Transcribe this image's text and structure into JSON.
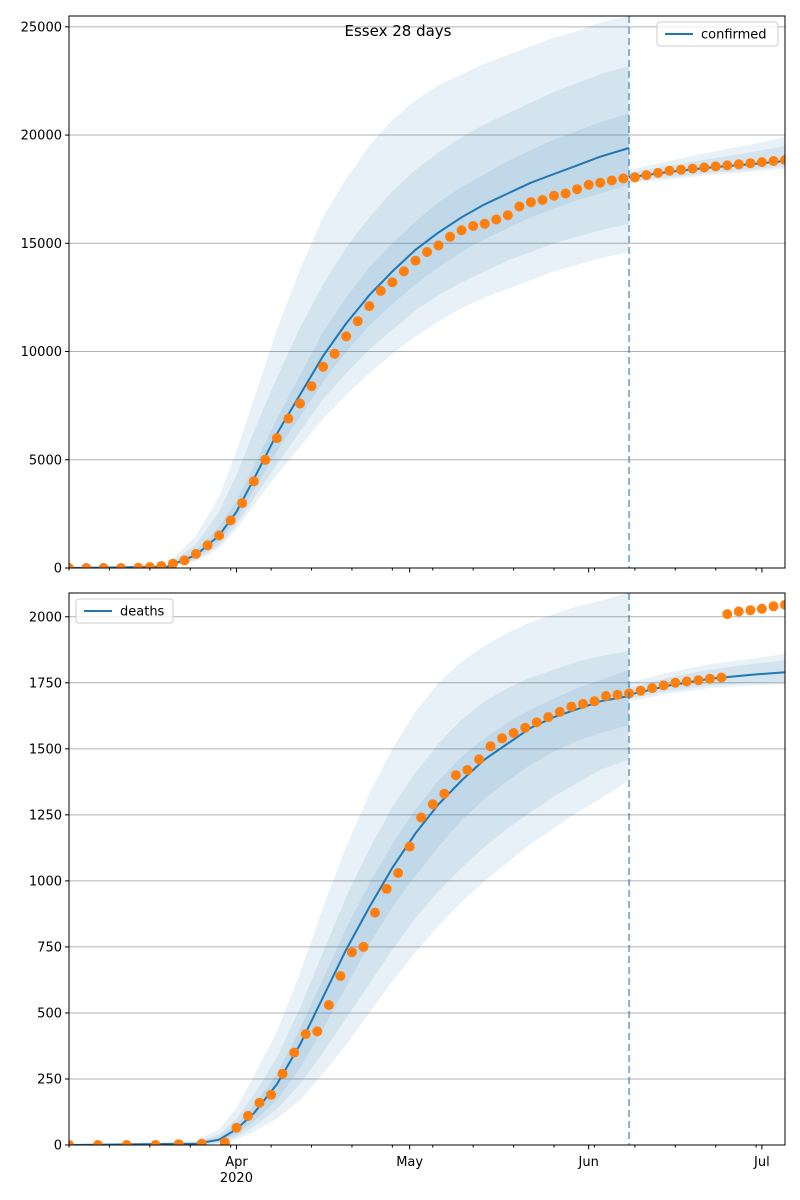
{
  "title": "Essex 28 days",
  "colors": {
    "model": "#1f77b4",
    "observed": "#ff7f0e",
    "grid": "#b0b0b0",
    "band": "#1f77b4"
  },
  "x_axis": {
    "start_date": "2020-03-03",
    "end_date": "2020-07-05",
    "forecast_date": "2020-06-08",
    "tick_labels": [
      "Apr",
      "May",
      "Jun",
      "Jul"
    ],
    "tick_dates": [
      "2020-04-01",
      "2020-05-01",
      "2020-06-01",
      "2020-07-01"
    ],
    "year_label": "2020"
  },
  "chart_data": [
    {
      "type": "line",
      "series_name": "confirmed",
      "legend": "top-right",
      "ylim": [
        0,
        25500
      ],
      "y_ticks": [
        0,
        5000,
        10000,
        15000,
        20000,
        25000
      ],
      "grid": true,
      "model_median": [
        {
          "x": "2020-03-03",
          "y": 0
        },
        {
          "x": "2020-03-20",
          "y": 60
        },
        {
          "x": "2020-03-25",
          "y": 600
        },
        {
          "x": "2020-03-29",
          "y": 1500
        },
        {
          "x": "2020-04-01",
          "y": 2600
        },
        {
          "x": "2020-04-04",
          "y": 4100
        },
        {
          "x": "2020-04-08",
          "y": 6200
        },
        {
          "x": "2020-04-12",
          "y": 8000
        },
        {
          "x": "2020-04-16",
          "y": 9800
        },
        {
          "x": "2020-04-20",
          "y": 11300
        },
        {
          "x": "2020-04-24",
          "y": 12600
        },
        {
          "x": "2020-04-28",
          "y": 13700
        },
        {
          "x": "2020-05-02",
          "y": 14700
        },
        {
          "x": "2020-05-06",
          "y": 15500
        },
        {
          "x": "2020-05-10",
          "y": 16200
        },
        {
          "x": "2020-05-14",
          "y": 16800
        },
        {
          "x": "2020-05-18",
          "y": 17300
        },
        {
          "x": "2020-05-22",
          "y": 17800
        },
        {
          "x": "2020-05-26",
          "y": 18200
        },
        {
          "x": "2020-05-30",
          "y": 18600
        },
        {
          "x": "2020-06-03",
          "y": 19000
        },
        {
          "x": "2020-06-08",
          "y": 19400
        }
      ],
      "projection": [
        {
          "x": "2020-06-08",
          "y": 18050
        },
        {
          "x": "2020-06-15",
          "y": 18300
        },
        {
          "x": "2020-06-22",
          "y": 18500
        },
        {
          "x": "2020-06-29",
          "y": 18650
        },
        {
          "x": "2020-07-05",
          "y": 18800
        }
      ],
      "bands_before_forecast": [
        {
          "lo": [
            0,
            10,
            300,
            900,
            1800,
            2900,
            4300,
            5600,
            6900,
            8000,
            9000,
            9900,
            10700,
            11400,
            12000,
            12500,
            12900,
            13300,
            13700,
            14000,
            14300,
            14600
          ],
          "hi": [
            0,
            150,
            1500,
            3300,
            5400,
            7800,
            11000,
            13800,
            16200,
            18000,
            19500,
            20700,
            21600,
            22300,
            22800,
            23300,
            23700,
            24100,
            24500,
            24800,
            25200,
            25500
          ]
        },
        {
          "lo": [
            0,
            20,
            380,
            1050,
            2000,
            3200,
            4800,
            6300,
            7800,
            9000,
            10100,
            11000,
            11900,
            12600,
            13200,
            13700,
            14200,
            14600,
            15000,
            15300,
            15600,
            15900
          ],
          "hi": [
            0,
            110,
            1100,
            2600,
            4300,
            6300,
            8800,
            11100,
            13100,
            14800,
            16200,
            17400,
            18400,
            19200,
            19900,
            20500,
            21000,
            21500,
            22000,
            22400,
            22800,
            23200
          ]
        },
        {
          "lo": [
            0,
            35,
            470,
            1250,
            2250,
            3600,
            5400,
            7000,
            8600,
            10000,
            11200,
            12200,
            13100,
            13900,
            14600,
            15200,
            15700,
            16200,
            16600,
            17000,
            17300,
            17700
          ],
          "hi": [
            0,
            85,
            800,
            1900,
            3100,
            4700,
            6900,
            8900,
            10900,
            12500,
            13900,
            15000,
            16000,
            16900,
            17600,
            18200,
            18800,
            19300,
            19800,
            20200,
            20600,
            21000
          ]
        }
      ],
      "bands_after_forecast": [
        {
          "lo": [
            17750,
            17950,
            18150,
            18300,
            18450
          ],
          "hi": [
            18400,
            18800,
            19200,
            19550,
            19900
          ]
        },
        {
          "lo": [
            17850,
            18050,
            18250,
            18400,
            18550
          ],
          "hi": [
            18250,
            18600,
            18900,
            19200,
            19500
          ]
        }
      ],
      "observed": [
        {
          "x": "2020-03-03",
          "y": 0
        },
        {
          "x": "2020-03-06",
          "y": 0
        },
        {
          "x": "2020-03-09",
          "y": 0
        },
        {
          "x": "2020-03-12",
          "y": 0
        },
        {
          "x": "2020-03-15",
          "y": 10
        },
        {
          "x": "2020-03-17",
          "y": 40
        },
        {
          "x": "2020-03-19",
          "y": 90
        },
        {
          "x": "2020-03-21",
          "y": 200
        },
        {
          "x": "2020-03-23",
          "y": 350
        },
        {
          "x": "2020-03-25",
          "y": 650
        },
        {
          "x": "2020-03-27",
          "y": 1050
        },
        {
          "x": "2020-03-29",
          "y": 1500
        },
        {
          "x": "2020-03-31",
          "y": 2200
        },
        {
          "x": "2020-04-02",
          "y": 3000
        },
        {
          "x": "2020-04-04",
          "y": 4000
        },
        {
          "x": "2020-04-06",
          "y": 5000
        },
        {
          "x": "2020-04-08",
          "y": 6000
        },
        {
          "x": "2020-04-10",
          "y": 6900
        },
        {
          "x": "2020-04-12",
          "y": 7600
        },
        {
          "x": "2020-04-14",
          "y": 8400
        },
        {
          "x": "2020-04-16",
          "y": 9300
        },
        {
          "x": "2020-04-18",
          "y": 9900
        },
        {
          "x": "2020-04-20",
          "y": 10700
        },
        {
          "x": "2020-04-22",
          "y": 11400
        },
        {
          "x": "2020-04-24",
          "y": 12100
        },
        {
          "x": "2020-04-26",
          "y": 12800
        },
        {
          "x": "2020-04-28",
          "y": 13200
        },
        {
          "x": "2020-04-30",
          "y": 13700
        },
        {
          "x": "2020-05-02",
          "y": 14200
        },
        {
          "x": "2020-05-04",
          "y": 14600
        },
        {
          "x": "2020-05-06",
          "y": 14900
        },
        {
          "x": "2020-05-08",
          "y": 15300
        },
        {
          "x": "2020-05-10",
          "y": 15600
        },
        {
          "x": "2020-05-12",
          "y": 15800
        },
        {
          "x": "2020-05-14",
          "y": 15900
        },
        {
          "x": "2020-05-16",
          "y": 16100
        },
        {
          "x": "2020-05-18",
          "y": 16300
        },
        {
          "x": "2020-05-20",
          "y": 16700
        },
        {
          "x": "2020-05-22",
          "y": 16900
        },
        {
          "x": "2020-05-24",
          "y": 17000
        },
        {
          "x": "2020-05-26",
          "y": 17200
        },
        {
          "x": "2020-05-28",
          "y": 17300
        },
        {
          "x": "2020-05-30",
          "y": 17500
        },
        {
          "x": "2020-06-01",
          "y": 17700
        },
        {
          "x": "2020-06-03",
          "y": 17800
        },
        {
          "x": "2020-06-05",
          "y": 17900
        },
        {
          "x": "2020-06-07",
          "y": 18000
        },
        {
          "x": "2020-06-09",
          "y": 18050
        },
        {
          "x": "2020-06-11",
          "y": 18150
        },
        {
          "x": "2020-06-13",
          "y": 18250
        },
        {
          "x": "2020-06-15",
          "y": 18350
        },
        {
          "x": "2020-06-17",
          "y": 18400
        },
        {
          "x": "2020-06-19",
          "y": 18450
        },
        {
          "x": "2020-06-21",
          "y": 18500
        },
        {
          "x": "2020-06-23",
          "y": 18550
        },
        {
          "x": "2020-06-25",
          "y": 18600
        },
        {
          "x": "2020-06-27",
          "y": 18650
        },
        {
          "x": "2020-06-29",
          "y": 18700
        },
        {
          "x": "2020-07-01",
          "y": 18750
        },
        {
          "x": "2020-07-03",
          "y": 18800
        },
        {
          "x": "2020-07-05",
          "y": 18850
        }
      ]
    },
    {
      "type": "line",
      "series_name": "deaths",
      "legend": "top-left",
      "ylim": [
        0,
        2090
      ],
      "y_ticks": [
        0,
        250,
        500,
        750,
        1000,
        1250,
        1500,
        1750,
        2000
      ],
      "grid": true,
      "model_median": [
        {
          "x": "2020-03-03",
          "y": 0
        },
        {
          "x": "2020-03-25",
          "y": 5
        },
        {
          "x": "2020-03-29",
          "y": 20
        },
        {
          "x": "2020-04-01",
          "y": 60
        },
        {
          "x": "2020-04-04",
          "y": 120
        },
        {
          "x": "2020-04-08",
          "y": 230
        },
        {
          "x": "2020-04-12",
          "y": 380
        },
        {
          "x": "2020-04-16",
          "y": 560
        },
        {
          "x": "2020-04-20",
          "y": 740
        },
        {
          "x": "2020-04-24",
          "y": 900
        },
        {
          "x": "2020-04-28",
          "y": 1050
        },
        {
          "x": "2020-05-02",
          "y": 1180
        },
        {
          "x": "2020-05-06",
          "y": 1290
        },
        {
          "x": "2020-05-10",
          "y": 1380
        },
        {
          "x": "2020-05-14",
          "y": 1460
        },
        {
          "x": "2020-05-18",
          "y": 1520
        },
        {
          "x": "2020-05-22",
          "y": 1580
        },
        {
          "x": "2020-05-26",
          "y": 1620
        },
        {
          "x": "2020-05-30",
          "y": 1650
        },
        {
          "x": "2020-06-03",
          "y": 1680
        },
        {
          "x": "2020-06-08",
          "y": 1700
        }
      ],
      "projection": [
        {
          "x": "2020-06-08",
          "y": 1705
        },
        {
          "x": "2020-06-15",
          "y": 1740
        },
        {
          "x": "2020-06-22",
          "y": 1765
        },
        {
          "x": "2020-06-29",
          "y": 1780
        },
        {
          "x": "2020-07-05",
          "y": 1790
        }
      ],
      "bands_before_forecast": [
        {
          "lo": [
            0,
            0,
            5,
            20,
            50,
            100,
            170,
            270,
            380,
            500,
            620,
            730,
            830,
            920,
            1000,
            1070,
            1140,
            1200,
            1260,
            1310,
            1380
          ],
          "hi": [
            0,
            15,
            60,
            140,
            260,
            430,
            650,
            900,
            1130,
            1330,
            1500,
            1640,
            1750,
            1830,
            1890,
            1940,
            1980,
            2010,
            2040,
            2060,
            2090
          ]
        },
        {
          "lo": [
            0,
            1,
            8,
            30,
            70,
            135,
            230,
            350,
            480,
            610,
            740,
            860,
            960,
            1050,
            1130,
            1200,
            1260,
            1320,
            1370,
            1420,
            1460
          ],
          "hi": [
            0,
            10,
            40,
            100,
            190,
            330,
            520,
            730,
            940,
            1120,
            1280,
            1410,
            1520,
            1610,
            1680,
            1730,
            1770,
            1800,
            1830,
            1850,
            1870
          ]
        },
        {
          "lo": [
            0,
            2,
            12,
            40,
            90,
            170,
            290,
            440,
            600,
            760,
            900,
            1020,
            1130,
            1230,
            1310,
            1380,
            1440,
            1490,
            1530,
            1560,
            1590
          ],
          "hi": [
            0,
            8,
            30,
            80,
            150,
            270,
            440,
            630,
            820,
            990,
            1140,
            1270,
            1380,
            1470,
            1540,
            1600,
            1650,
            1690,
            1730,
            1760,
            1800
          ]
        }
      ],
      "bands_after_forecast": [
        {
          "lo": [
            1680,
            1710,
            1730,
            1740,
            1745
          ],
          "hi": [
            1750,
            1790,
            1820,
            1840,
            1860
          ]
        },
        {
          "lo": [
            1690,
            1720,
            1740,
            1750,
            1755
          ],
          "hi": [
            1730,
            1770,
            1800,
            1820,
            1835
          ]
        }
      ],
      "observed": [
        {
          "x": "2020-03-03",
          "y": 0
        },
        {
          "x": "2020-03-08",
          "y": 0
        },
        {
          "x": "2020-03-13",
          "y": 0
        },
        {
          "x": "2020-03-18",
          "y": 0
        },
        {
          "x": "2020-03-22",
          "y": 3
        },
        {
          "x": "2020-03-26",
          "y": 5
        },
        {
          "x": "2020-03-30",
          "y": 10
        },
        {
          "x": "2020-04-01",
          "y": 65
        },
        {
          "x": "2020-04-03",
          "y": 110
        },
        {
          "x": "2020-04-05",
          "y": 160
        },
        {
          "x": "2020-04-07",
          "y": 190
        },
        {
          "x": "2020-04-09",
          "y": 270
        },
        {
          "x": "2020-04-11",
          "y": 350
        },
        {
          "x": "2020-04-13",
          "y": 420
        },
        {
          "x": "2020-04-15",
          "y": 430
        },
        {
          "x": "2020-04-17",
          "y": 530
        },
        {
          "x": "2020-04-19",
          "y": 640
        },
        {
          "x": "2020-04-21",
          "y": 730
        },
        {
          "x": "2020-04-23",
          "y": 750
        },
        {
          "x": "2020-04-25",
          "y": 880
        },
        {
          "x": "2020-04-27",
          "y": 970
        },
        {
          "x": "2020-04-29",
          "y": 1030
        },
        {
          "x": "2020-05-01",
          "y": 1130
        },
        {
          "x": "2020-05-03",
          "y": 1240
        },
        {
          "x": "2020-05-05",
          "y": 1290
        },
        {
          "x": "2020-05-07",
          "y": 1330
        },
        {
          "x": "2020-05-09",
          "y": 1400
        },
        {
          "x": "2020-05-11",
          "y": 1420
        },
        {
          "x": "2020-05-13",
          "y": 1460
        },
        {
          "x": "2020-05-15",
          "y": 1510
        },
        {
          "x": "2020-05-17",
          "y": 1540
        },
        {
          "x": "2020-05-19",
          "y": 1560
        },
        {
          "x": "2020-05-21",
          "y": 1580
        },
        {
          "x": "2020-05-23",
          "y": 1600
        },
        {
          "x": "2020-05-25",
          "y": 1620
        },
        {
          "x": "2020-05-27",
          "y": 1640
        },
        {
          "x": "2020-05-29",
          "y": 1660
        },
        {
          "x": "2020-05-31",
          "y": 1670
        },
        {
          "x": "2020-06-02",
          "y": 1680
        },
        {
          "x": "2020-06-04",
          "y": 1700
        },
        {
          "x": "2020-06-06",
          "y": 1705
        },
        {
          "x": "2020-06-08",
          "y": 1710
        },
        {
          "x": "2020-06-10",
          "y": 1720
        },
        {
          "x": "2020-06-12",
          "y": 1730
        },
        {
          "x": "2020-06-14",
          "y": 1740
        },
        {
          "x": "2020-06-16",
          "y": 1750
        },
        {
          "x": "2020-06-18",
          "y": 1755
        },
        {
          "x": "2020-06-20",
          "y": 1760
        },
        {
          "x": "2020-06-22",
          "y": 1765
        },
        {
          "x": "2020-06-24",
          "y": 1770
        },
        {
          "x": "2020-06-25",
          "y": 2010
        },
        {
          "x": "2020-06-27",
          "y": 2020
        },
        {
          "x": "2020-06-29",
          "y": 2025
        },
        {
          "x": "2020-07-01",
          "y": 2030
        },
        {
          "x": "2020-07-03",
          "y": 2040
        },
        {
          "x": "2020-07-05",
          "y": 2045
        }
      ]
    }
  ]
}
